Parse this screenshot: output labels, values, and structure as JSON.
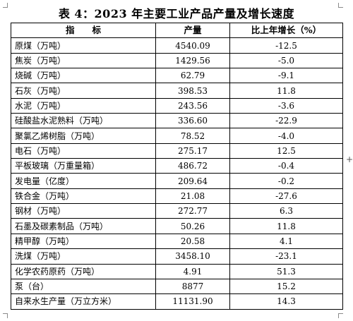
{
  "title": "表 4：2023 年主要工业产品产量及增长速度",
  "table": {
    "headers": [
      "指　　标",
      "产量",
      "比上年增长（%）"
    ],
    "rows": [
      {
        "name": "原煤（万吨）",
        "output": "4540.09",
        "growth": "-12.5"
      },
      {
        "name": "焦炭（万吨）",
        "output": "1429.56",
        "growth": "-5.0"
      },
      {
        "name": "烧碱（万吨）",
        "output": "62.79",
        "growth": "-9.1"
      },
      {
        "name": "石灰（万吨）",
        "output": "398.53",
        "growth": "11.8"
      },
      {
        "name": "水泥（万吨）",
        "output": "243.56",
        "growth": "-3.6"
      },
      {
        "name": "硅酸盐水泥熟料（万吨）",
        "output": "336.60",
        "growth": "-22.9"
      },
      {
        "name": "聚氯乙烯树脂（万吨）",
        "output": "78.52",
        "growth": "-4.0"
      },
      {
        "name": "电石（万吨）",
        "output": "275.17",
        "growth": "12.5"
      },
      {
        "name": "平板玻璃（万重量箱）",
        "output": "486.72",
        "growth": "-0.4"
      },
      {
        "name": "发电量（亿度）",
        "output": "209.64",
        "growth": "-0.2"
      },
      {
        "name": "铁合金（万吨）",
        "output": "21.08",
        "growth": "-27.6"
      },
      {
        "name": "钢材（万吨）",
        "output": "272.77",
        "growth": "6.3"
      },
      {
        "name": "石墨及碳素制品（万吨）",
        "output": "50.26",
        "growth": "11.8"
      },
      {
        "name": "精甲醇（万吨）",
        "output": "20.58",
        "growth": "4.1"
      },
      {
        "name": "洗煤（万吨）",
        "output": "3458.10",
        "growth": "-23.1"
      },
      {
        "name": "化学农药原药（万吨）",
        "output": "4.91",
        "growth": "51.3"
      },
      {
        "name": "泵（台）",
        "output": "8877",
        "growth": "15.2"
      },
      {
        "name": "自来水生产量（万立方米）",
        "output": "11131.90",
        "growth": "14.3"
      }
    ]
  },
  "side_handle": "+"
}
